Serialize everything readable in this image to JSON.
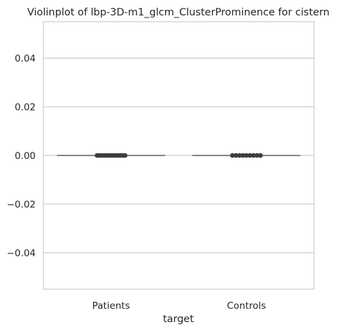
{
  "chart_data": {
    "type": "violin",
    "title": "Violinplot of lbp-3D-m1_glcm_ClusterProminence for cistern",
    "xlabel": "target",
    "ylabel": "",
    "categories": [
      "Patients",
      "Controls"
    ],
    "ylim": [
      -0.055,
      0.055
    ],
    "yticks": [
      0.04,
      0.02,
      0.0,
      -0.02,
      -0.04
    ],
    "ytick_labels": [
      "0.04",
      "0.02",
      "0.00",
      "−0.02",
      "−0.04"
    ],
    "grid": true,
    "series": [
      {
        "category": "Patients",
        "points_y": [
          0,
          0,
          0,
          0,
          0,
          0,
          0,
          0,
          0,
          0,
          0,
          0
        ],
        "median": 0,
        "q1": 0,
        "q3": 0
      },
      {
        "category": "Controls",
        "points_y": [
          0,
          0,
          0,
          0,
          0,
          0,
          0,
          0,
          0
        ],
        "median": 0,
        "q1": 0,
        "q3": 0
      }
    ],
    "colors": {
      "violin_line": "#606060",
      "points": "#3d3d3d",
      "grid": "#cccccc",
      "frame": "#cccccc",
      "text": "#262626"
    }
  }
}
